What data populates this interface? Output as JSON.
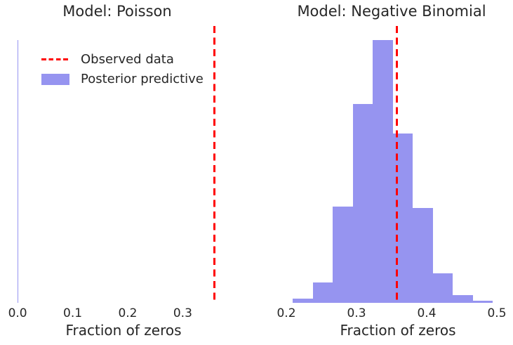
{
  "figure": {
    "background_color": "#ffffff",
    "text_color": "#262626"
  },
  "legend": {
    "position": "upper-left-inside-left-panel",
    "frame": false,
    "entries": [
      {
        "type": "dashed-line",
        "label": "Observed data",
        "color": "#ff0000"
      },
      {
        "type": "patch",
        "label": "Posterior predictive",
        "color": "#9694f0"
      }
    ]
  },
  "chart_data": [
    {
      "type": "histogram",
      "title": "Model: Poisson",
      "xlabel": "Fraction of zeros",
      "bar_color": "#9694f0",
      "grid": false,
      "yaxis": "hidden",
      "observed_line": {
        "value": 0.3575,
        "color": "#ff0000",
        "style": "dashed",
        "label": "Observed data"
      },
      "bins": {
        "edges": [
          0.0,
          0.0003,
          0.0009
        ],
        "rel_heights": [
          1.0,
          0.222
        ]
      },
      "xlim": [
        -0.018,
        0.376
      ],
      "ylim_rel": [
        0,
        1.053
      ],
      "xticks": [
        {
          "value": 0.0,
          "label": "0.0"
        },
        {
          "value": 0.1,
          "label": "0.1"
        },
        {
          "value": 0.2,
          "label": "0.2"
        },
        {
          "value": 0.3,
          "label": "0.3"
        }
      ]
    },
    {
      "type": "histogram",
      "title": "Model: Negative Binomial",
      "xlabel": "Fraction of zeros",
      "bar_color": "#9694f0",
      "grid": false,
      "yaxis": "hidden",
      "observed_line": {
        "value": 0.3575,
        "color": "#ff0000",
        "style": "dashed",
        "label": "Observed data"
      },
      "bins": {
        "edges": [
          0.209,
          0.2375,
          0.266,
          0.2945,
          0.323,
          0.3515,
          0.38,
          0.4085,
          0.437,
          0.4655,
          0.494
        ],
        "rel_heights": [
          0.015,
          0.078,
          0.367,
          0.757,
          1.0,
          0.645,
          0.362,
          0.112,
          0.029,
          0.008
        ]
      },
      "xlim": [
        0.194,
        0.5
      ],
      "ylim_rel": [
        0,
        1.053
      ],
      "xticks": [
        {
          "value": 0.2,
          "label": "0.2"
        },
        {
          "value": 0.3,
          "label": "0.3"
        },
        {
          "value": 0.4,
          "label": "0.4"
        },
        {
          "value": 0.5,
          "label": "0.5"
        }
      ]
    }
  ]
}
